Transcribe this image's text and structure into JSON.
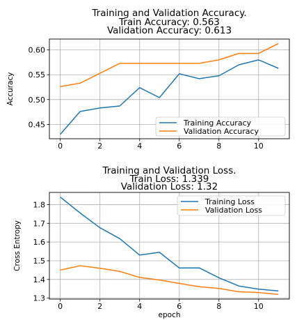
{
  "chart_data": [
    {
      "type": "line",
      "title_lines": [
        "Training and Validation Accuracy.",
        "Train Accuracy: 0.563",
        "Validation Accuracy: 0.613"
      ],
      "xlabel": "",
      "ylabel": "Accuracy",
      "x": [
        0,
        1,
        2,
        3,
        4,
        5,
        6,
        7,
        8,
        9,
        10,
        11
      ],
      "xticks": [
        0,
        2,
        4,
        6,
        8,
        10
      ],
      "yticks": [
        0.45,
        0.5,
        0.55,
        0.6
      ],
      "ytick_labels": [
        "0.45",
        "0.50",
        "0.55",
        "0.60"
      ],
      "xlim": [
        -0.55,
        11.55
      ],
      "ylim": [
        0.421,
        0.622
      ],
      "grid": true,
      "legend_position": "lower-right",
      "series": [
        {
          "name": "Training Accuracy",
          "color": "#1f77b4",
          "values": [
            0.43,
            0.476,
            0.483,
            0.487,
            0.524,
            0.504,
            0.552,
            0.542,
            0.548,
            0.57,
            0.58,
            0.563
          ]
        },
        {
          "name": "Validation Accuracy",
          "color": "#ff7f0e",
          "values": [
            0.526,
            0.533,
            0.553,
            0.573,
            0.573,
            0.573,
            0.573,
            0.573,
            0.58,
            0.593,
            0.593,
            0.613
          ]
        }
      ]
    },
    {
      "type": "line",
      "title_lines": [
        "Training and Validation Loss.",
        "Train Loss: 1.339",
        "Validation Loss: 1.32"
      ],
      "xlabel": "epoch",
      "ylabel": "Cross Entropy",
      "x": [
        0,
        1,
        2,
        3,
        4,
        5,
        6,
        7,
        8,
        9,
        10,
        11
      ],
      "xticks": [
        0,
        2,
        4,
        6,
        8,
        10
      ],
      "yticks": [
        1.3,
        1.4,
        1.5,
        1.6,
        1.7,
        1.8
      ],
      "ytick_labels": [
        "1.3",
        "1.4",
        "1.5",
        "1.6",
        "1.7",
        "1.8"
      ],
      "xlim": [
        -0.55,
        11.55
      ],
      "ylim": [
        1.295,
        1.865
      ],
      "grid": true,
      "legend_position": "top-right",
      "series": [
        {
          "name": "Training Loss",
          "color": "#1f77b4",
          "values": [
            1.84,
            1.755,
            1.676,
            1.618,
            1.53,
            1.545,
            1.461,
            1.462,
            1.409,
            1.365,
            1.348,
            1.339
          ]
        },
        {
          "name": "Validation Loss",
          "color": "#ff7f0e",
          "values": [
            1.45,
            1.473,
            1.46,
            1.443,
            1.411,
            1.397,
            1.379,
            1.361,
            1.352,
            1.334,
            1.33,
            1.32
          ]
        }
      ]
    }
  ]
}
